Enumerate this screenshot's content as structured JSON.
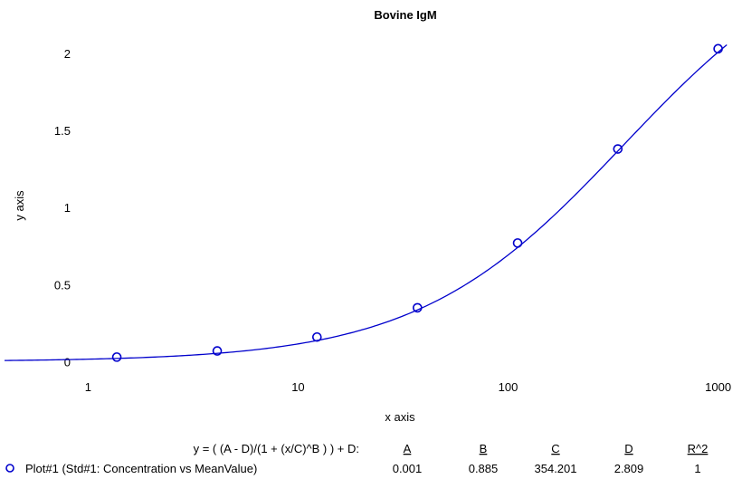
{
  "chart_data": {
    "type": "scatter",
    "title": "Bovine IgM",
    "xlabel": "x axis",
    "ylabel": "y axis",
    "x_scale": "log",
    "xlim": [
      0.4,
      1200
    ],
    "ylim": [
      -0.05,
      2.17
    ],
    "x_ticks": [
      1,
      10,
      100,
      1000
    ],
    "x_tick_labels": [
      "1",
      "10",
      "100",
      "1000"
    ],
    "y_ticks": [
      0,
      0.5,
      1,
      1.5,
      2
    ],
    "y_tick_labels": [
      "0",
      "0.5",
      "1",
      "1.5",
      "2"
    ],
    "grid": false,
    "point_color": "#0000cc",
    "curve_color": "#0000cc",
    "series": [
      {
        "name": "Plot#1 (Std#1: Concentration vs MeanValue)",
        "x": [
          1.37,
          4.12,
          12.3,
          37.0,
          111,
          333,
          1000
        ],
        "y": [
          0.03,
          0.07,
          0.16,
          0.35,
          0.77,
          1.38,
          2.03
        ]
      }
    ],
    "fit": {
      "equation": "y = ( (A - D)/(1 + (x/C)^B ) ) + D:",
      "param_names": [
        "A",
        "B",
        "C",
        "D",
        "R^2"
      ],
      "param_values": [
        "0.001",
        "0.885",
        "354.201",
        "2.809",
        "1"
      ]
    }
  }
}
